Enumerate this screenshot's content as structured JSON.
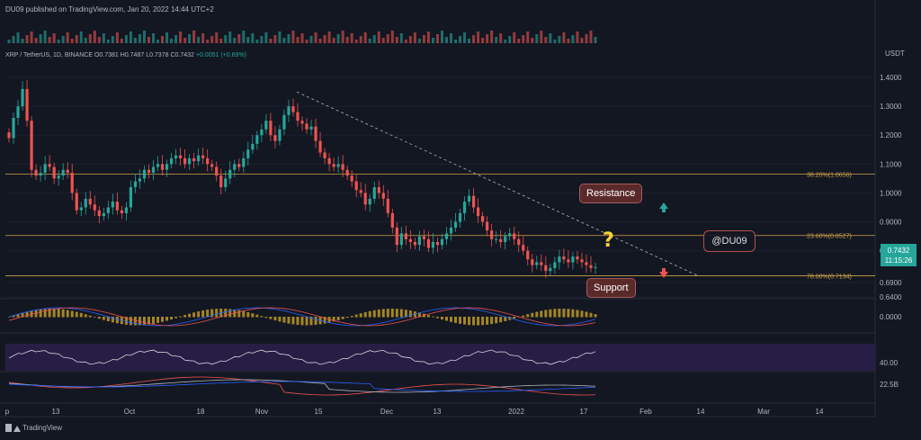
{
  "header": {
    "publisher": "DU09 published on TradingView.com, Jan 20, 2022 14:44 UTC+2"
  },
  "symbol_line": {
    "pair": "XRP / TetherUS, 1D, BINANCE",
    "open": "O0.7381",
    "high": "H0.7487",
    "low": "L0.7378",
    "close": "C0.7432",
    "change": "+0.0051 (+0.69%)"
  },
  "footer": {
    "brand": "TradingView"
  },
  "annotations": {
    "resistance": "Resistance",
    "support": "Support",
    "question": "?",
    "author": "@DU09"
  },
  "price_tag": {
    "price": "0.7432",
    "countdown": "11:15:26"
  },
  "colors": {
    "background": "#131722",
    "up": "#26a69a",
    "down": "#ef5350",
    "fib": "#d1a24a",
    "macd_hist": "#c9a227",
    "rsi_band": "#2a1f4a"
  },
  "chart_data": {
    "type": "candlestick",
    "timeframe": "1D",
    "currency": "USDT",
    "x_ticks": [
      "p",
      "13",
      "Oct",
      "18",
      "Nov",
      "15",
      "Dec",
      "13",
      "2022",
      "17",
      "Feb",
      "14",
      "Mar",
      "14"
    ],
    "y_ticks": [
      "1.4000",
      "1.3000",
      "1.2000",
      "1.1000",
      "1.0000",
      "0.9000",
      "0.8000",
      "0.7432",
      "0.6900",
      "0.6400"
    ],
    "ylim": [
      0.64,
      1.45
    ],
    "fib_levels": [
      {
        "label": "38.20%(1.0656)",
        "value": 1.0656
      },
      {
        "label": "23.60%(0.8527)",
        "value": 0.8527
      },
      {
        "label": "78.60%(0.7134)",
        "value": 0.7134
      }
    ],
    "trendline": {
      "from": {
        "x": "Nov 10",
        "y": 1.35
      },
      "to": {
        "x": "Feb 10",
        "y": 0.715
      }
    },
    "macd_axis_label": "0.0000",
    "rsi_axis_label": "40.00",
    "volume_axis_label": "22.5B",
    "ohlc_close": [
      1.19,
      1.26,
      1.3,
      1.36,
      1.25,
      1.08,
      1.06,
      1.07,
      1.1,
      1.09,
      1.05,
      1.06,
      1.08,
      1.07,
      1.0,
      0.94,
      0.95,
      0.98,
      0.96,
      0.94,
      0.92,
      0.93,
      0.95,
      0.97,
      0.94,
      0.93,
      0.95,
      1.02,
      1.04,
      1.05,
      1.08,
      1.07,
      1.09,
      1.1,
      1.08,
      1.1,
      1.12,
      1.13,
      1.12,
      1.1,
      1.12,
      1.11,
      1.13,
      1.12,
      1.1,
      1.09,
      1.06,
      1.02,
      1.05,
      1.08,
      1.1,
      1.09,
      1.12,
      1.15,
      1.17,
      1.2,
      1.22,
      1.25,
      1.2,
      1.18,
      1.22,
      1.27,
      1.3,
      1.28,
      1.25,
      1.24,
      1.22,
      1.23,
      1.18,
      1.14,
      1.12,
      1.1,
      1.09,
      1.1,
      1.08,
      1.06,
      1.04,
      1.01,
      1.0,
      0.96,
      0.98,
      1.02,
      1.0,
      0.98,
      0.93,
      0.88,
      0.82,
      0.86,
      0.84,
      0.83,
      0.82,
      0.85,
      0.84,
      0.81,
      0.83,
      0.82,
      0.84,
      0.86,
      0.88,
      0.9,
      0.93,
      0.97,
      0.99,
      0.95,
      0.92,
      0.9,
      0.87,
      0.84,
      0.84,
      0.83,
      0.85,
      0.86,
      0.84,
      0.82,
      0.8,
      0.77,
      0.75,
      0.76,
      0.75,
      0.73,
      0.74,
      0.76,
      0.78,
      0.77,
      0.76,
      0.78,
      0.77,
      0.76,
      0.75,
      0.74,
      0.7432
    ]
  }
}
